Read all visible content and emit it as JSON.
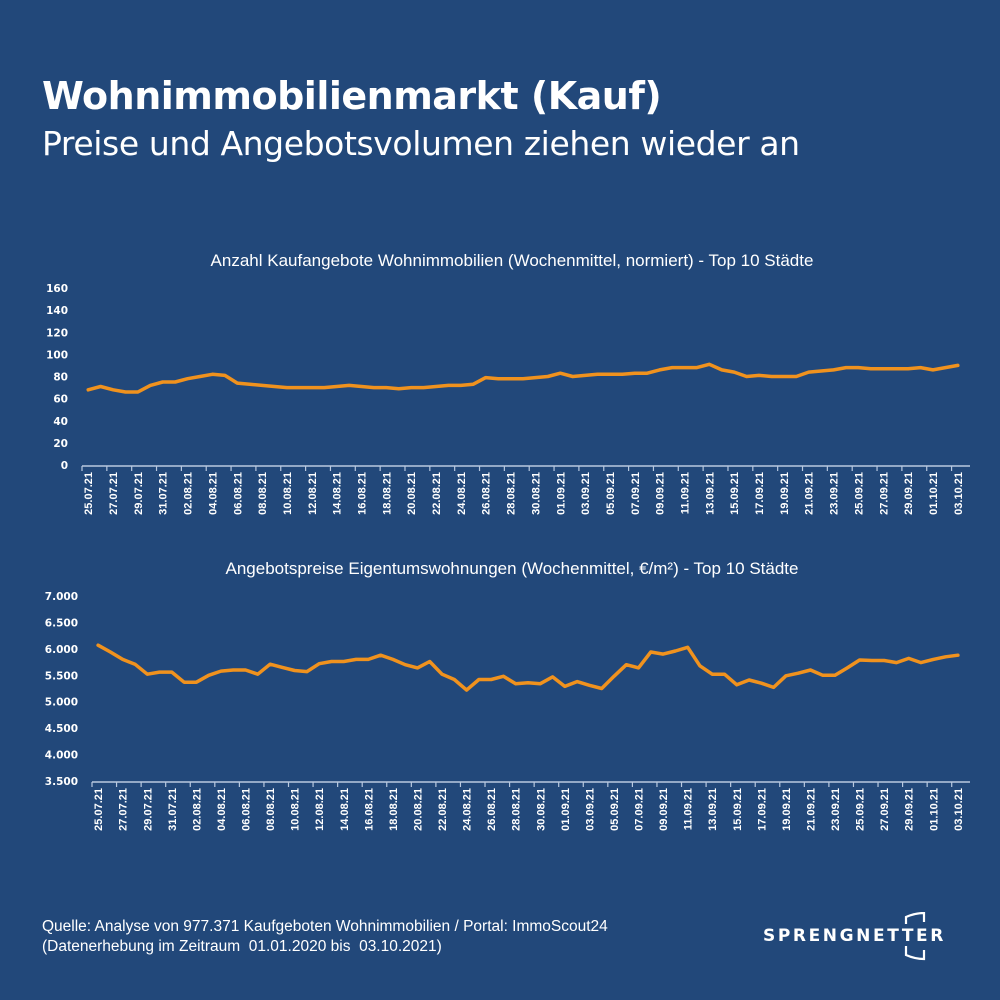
{
  "header": {
    "title": "Wohnimmobilienmarkt (Kauf)",
    "subtitle": "Preise und Angebotsvolumen ziehen wieder an"
  },
  "colors": {
    "background": "#22487a",
    "line": "#f0921e",
    "text": "#ffffff",
    "axis": "#b9c9e0"
  },
  "chart_data": [
    {
      "type": "line",
      "title": "Anzahl Kaufangebote Wohnimmobilien (Wochenmittel, normiert) - Top 10 Städte",
      "xlabel": "",
      "ylabel": "",
      "ylim": [
        0,
        160
      ],
      "yticks": [
        0,
        20,
        40,
        60,
        80,
        100,
        120,
        140,
        160
      ],
      "ytick_labels": [
        "0",
        "20",
        "40",
        "60",
        "80",
        "100",
        "120",
        "140",
        "160"
      ],
      "grid": false,
      "legend": "none",
      "x_tick_labels": [
        "25.07.21",
        "27.07.21",
        "29.07.21",
        "31.07.21",
        "02.08.21",
        "04.08.21",
        "06.08.21",
        "08.08.21",
        "10.08.21",
        "12.08.21",
        "14.08.21",
        "16.08.21",
        "18.08.21",
        "20.08.21",
        "22.08.21",
        "24.08.21",
        "26.08.21",
        "28.08.21",
        "30.08.21",
        "01.09.21",
        "03.09.21",
        "05.09.21",
        "07.09.21",
        "09.09.21",
        "11.09.21",
        "13.09.21",
        "15.09.21",
        "17.09.21",
        "19.09.21",
        "21.09.21",
        "23.09.21",
        "25.09.21",
        "27.09.21",
        "29.09.21",
        "01.10.21",
        "03.10.21"
      ],
      "x_range": [
        "25.07.21",
        "03.10.21"
      ],
      "series": [
        {
          "name": "Anzahl Kaufangebote",
          "values": [
            68,
            71,
            68,
            66,
            66,
            72,
            75,
            75,
            78,
            80,
            82,
            81,
            74,
            73,
            72,
            71,
            70,
            70,
            70,
            70,
            71,
            72,
            71,
            70,
            70,
            69,
            70,
            70,
            71,
            72,
            72,
            73,
            79,
            78,
            78,
            78,
            79,
            80,
            83,
            80,
            81,
            82,
            82,
            82,
            83,
            83,
            86,
            88,
            88,
            88,
            91,
            86,
            84,
            80,
            81,
            80,
            80,
            80,
            84,
            85,
            86,
            88,
            88,
            87,
            87,
            87,
            87,
            88,
            86,
            88,
            90
          ]
        }
      ]
    },
    {
      "type": "line",
      "title": "Angebotspreise Eigentumswohnungen (Wochenmittel, €/m²) - Top 10 Städte",
      "xlabel": "",
      "ylabel": "",
      "ylim": [
        3500,
        7000
      ],
      "yticks": [
        3500,
        4000,
        4500,
        5000,
        5500,
        6000,
        6500,
        7000
      ],
      "ytick_labels": [
        "3.500",
        "4.000",
        "4.500",
        "5.000",
        "5.500",
        "6.000",
        "6.500",
        "7.000"
      ],
      "grid": false,
      "legend": "none",
      "x_tick_labels": [
        "25.07.21",
        "27.07.21",
        "29.07.21",
        "31.07.21",
        "02.08.21",
        "04.08.21",
        "06.08.21",
        "08.08.21",
        "10.08.21",
        "12.08.21",
        "14.08.21",
        "16.08.21",
        "18.08.21",
        "20.08.21",
        "22.08.21",
        "24.08.21",
        "26.08.21",
        "28.08.21",
        "30.08.21",
        "01.09.21",
        "03.09.21",
        "05.09.21",
        "07.09.21",
        "09.09.21",
        "11.09.21",
        "13.09.21",
        "15.09.21",
        "17.09.21",
        "19.09.21",
        "21.09.21",
        "23.09.21",
        "25.09.21",
        "27.09.21",
        "29.09.21",
        "01.10.21",
        "03.10.21"
      ],
      "x_range": [
        "25.07.21",
        "03.10.21"
      ],
      "series": [
        {
          "name": "Angebotspreise €/m²",
          "values": [
            6070,
            5940,
            5800,
            5710,
            5520,
            5560,
            5560,
            5370,
            5370,
            5500,
            5580,
            5600,
            5600,
            5520,
            5710,
            5650,
            5590,
            5570,
            5720,
            5760,
            5760,
            5800,
            5800,
            5880,
            5800,
            5700,
            5640,
            5760,
            5520,
            5420,
            5220,
            5420,
            5420,
            5480,
            5340,
            5360,
            5340,
            5470,
            5290,
            5380,
            5310,
            5250,
            5480,
            5700,
            5640,
            5940,
            5900,
            5960,
            6030,
            5680,
            5520,
            5520,
            5320,
            5410,
            5350,
            5270,
            5490,
            5540,
            5600,
            5500,
            5500,
            5640,
            5790,
            5780,
            5780,
            5740,
            5820,
            5740,
            5800,
            5850,
            5880
          ]
        }
      ]
    }
  ],
  "footer": {
    "source_line": "Quelle: Analyse von 977.371 Kaufgeboten Wohnimmobilien / Portal: ImmoScout24",
    "period_line": "(Datenerhebung im Zeitraum  01.01.2020 bis  03.10.2021)"
  },
  "logo": {
    "text": "SPRENGNETTER"
  }
}
